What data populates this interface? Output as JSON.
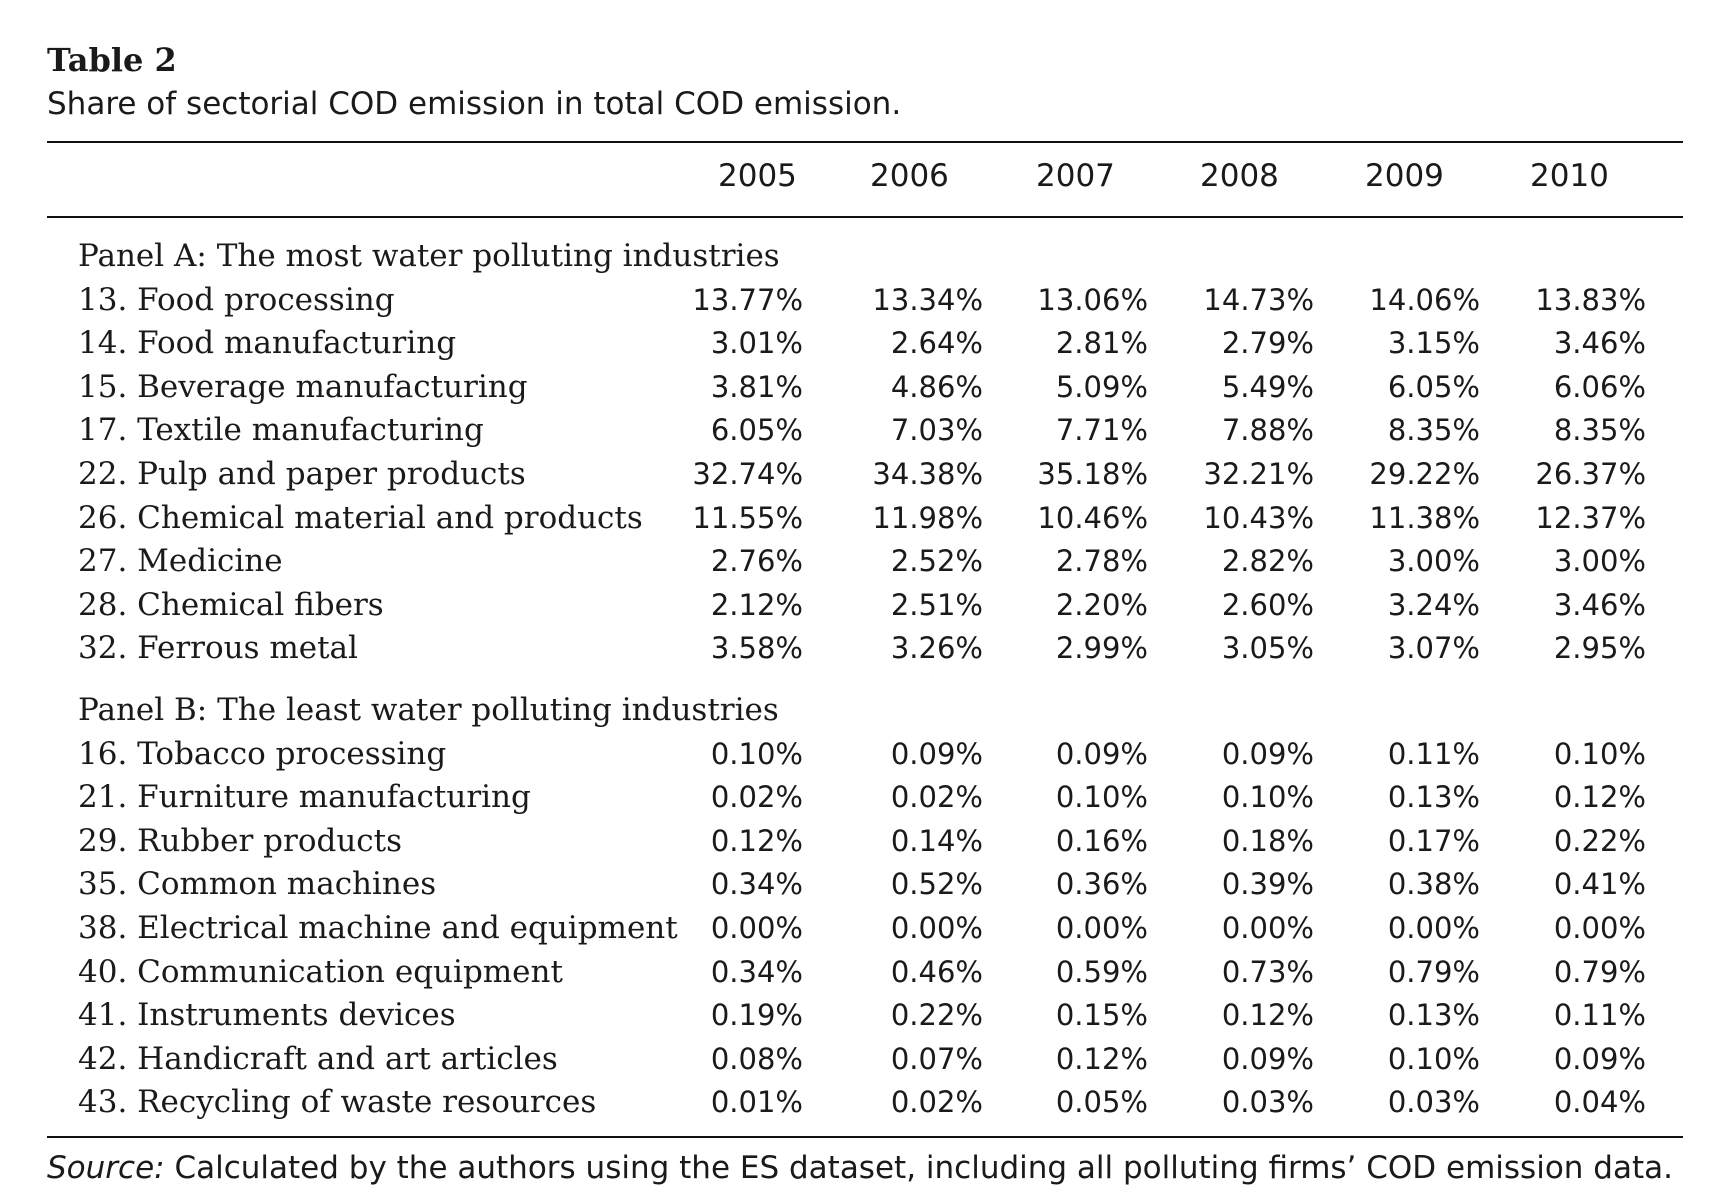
{
  "table": {
    "label": "Table 2",
    "caption": "Share of sectorial COD emission in total COD emission.",
    "years": [
      "2005",
      "2006",
      "2007",
      "2008",
      "2009",
      "2010"
    ],
    "panels": [
      {
        "title": "Panel A: The most water polluting industries",
        "rows": [
          {
            "label": "13. Food processing",
            "values": [
              "13.77%",
              "13.34%",
              "13.06%",
              "14.73%",
              "14.06%",
              "13.83%"
            ]
          },
          {
            "label": "14. Food manufacturing",
            "values": [
              "3.01%",
              "2.64%",
              "2.81%",
              "2.79%",
              "3.15%",
              "3.46%"
            ]
          },
          {
            "label": "15. Beverage manufacturing",
            "values": [
              "3.81%",
              "4.86%",
              "5.09%",
              "5.49%",
              "6.05%",
              "6.06%"
            ]
          },
          {
            "label": "17. Textile manufacturing",
            "values": [
              "6.05%",
              "7.03%",
              "7.71%",
              "7.88%",
              "8.35%",
              "8.35%"
            ]
          },
          {
            "label": "22. Pulp and paper products",
            "values": [
              "32.74%",
              "34.38%",
              "35.18%",
              "32.21%",
              "29.22%",
              "26.37%"
            ]
          },
          {
            "label": "26. Chemical material and products",
            "values": [
              "11.55%",
              "11.98%",
              "10.46%",
              "10.43%",
              "11.38%",
              "12.37%"
            ]
          },
          {
            "label": "27. Medicine",
            "values": [
              "2.76%",
              "2.52%",
              "2.78%",
              "2.82%",
              "3.00%",
              "3.00%"
            ]
          },
          {
            "label": "28. Chemical fibers",
            "values": [
              "2.12%",
              "2.51%",
              "2.20%",
              "2.60%",
              "3.24%",
              "3.46%"
            ]
          },
          {
            "label": "32. Ferrous metal",
            "values": [
              "3.58%",
              "3.26%",
              "2.99%",
              "3.05%",
              "3.07%",
              "2.95%"
            ]
          }
        ]
      },
      {
        "title": "Panel B: The least water polluting industries",
        "rows": [
          {
            "label": "16. Tobacco processing",
            "values": [
              "0.10%",
              "0.09%",
              "0.09%",
              "0.09%",
              "0.11%",
              "0.10%"
            ]
          },
          {
            "label": "21. Furniture manufacturing",
            "values": [
              "0.02%",
              "0.02%",
              "0.10%",
              "0.10%",
              "0.13%",
              "0.12%"
            ]
          },
          {
            "label": "29. Rubber products",
            "values": [
              "0.12%",
              "0.14%",
              "0.16%",
              "0.18%",
              "0.17%",
              "0.22%"
            ]
          },
          {
            "label": "35. Common machines",
            "values": [
              "0.34%",
              "0.52%",
              "0.36%",
              "0.39%",
              "0.38%",
              "0.41%"
            ]
          },
          {
            "label": "38. Electrical machine and equipment",
            "values": [
              "0.00%",
              "0.00%",
              "0.00%",
              "0.00%",
              "0.00%",
              "0.00%"
            ]
          },
          {
            "label": "40. Communication equipment",
            "values": [
              "0.34%",
              "0.46%",
              "0.59%",
              "0.73%",
              "0.79%",
              "0.79%"
            ]
          },
          {
            "label": "41. Instruments devices",
            "values": [
              "0.19%",
              "0.22%",
              "0.15%",
              "0.12%",
              "0.13%",
              "0.11%"
            ]
          },
          {
            "label": "42. Handicraft and art articles",
            "values": [
              "0.08%",
              "0.07%",
              "0.12%",
              "0.09%",
              "0.10%",
              "0.09%"
            ]
          },
          {
            "label": "43. Recycling of waste resources",
            "values": [
              "0.01%",
              "0.02%",
              "0.05%",
              "0.03%",
              "0.03%",
              "0.04%"
            ]
          }
        ]
      }
    ],
    "source_label": "Source:",
    "source_text": " Calculated by the authors using the ES dataset, including all polluting firms’ COD emission data."
  }
}
